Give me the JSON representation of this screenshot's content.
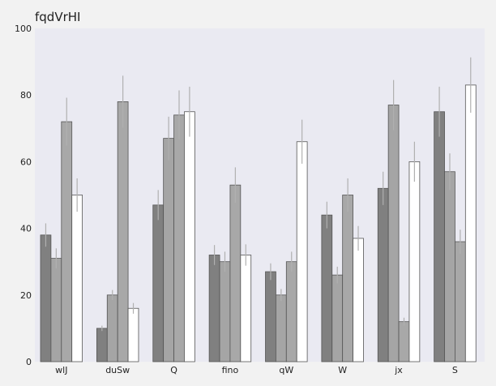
{
  "chart_data": {
    "type": "bar",
    "title": "fqdVrHI",
    "xlabel": "",
    "ylabel": "",
    "ylim": [
      0,
      100
    ],
    "yticks": [
      0,
      20,
      40,
      60,
      80,
      100
    ],
    "grid": false,
    "legend": "none",
    "error_bars": true,
    "categories": [
      "wlJ",
      "duSw",
      "Q",
      "fino",
      "qW",
      "W",
      "jx",
      "S"
    ],
    "series": [
      {
        "color": "#808080",
        "values": [
          38,
          10,
          47,
          32,
          27,
          44,
          52,
          75
        ],
        "errors": [
          3.5,
          0.8,
          4.5,
          3,
          2.5,
          4,
          5,
          7.5
        ]
      },
      {
        "color": "#a5a5a5",
        "values": [
          31,
          20,
          67,
          30,
          20,
          26,
          77,
          57
        ],
        "errors": [
          3,
          1.5,
          6.5,
          3,
          1.8,
          2.5,
          7.5,
          5.5
        ]
      },
      {
        "color": "#a8a8a8",
        "values": [
          72,
          78,
          74,
          53,
          30,
          50,
          12,
          36
        ],
        "errors": [
          7.2,
          7.8,
          7.4,
          5.3,
          3,
          5,
          1.2,
          3.6
        ]
      },
      {
        "color": "#ffffff",
        "values": [
          50,
          16,
          75,
          32,
          66,
          37,
          60,
          83
        ],
        "errors": [
          5,
          1.6,
          7.5,
          3.2,
          6.6,
          3.7,
          6,
          8.3
        ]
      }
    ],
    "colors": {
      "plot_bg": "#eaeaf2",
      "page_bg": "#f2f2f2",
      "edge": "#555555",
      "errbar": "#b0b0b0"
    }
  }
}
